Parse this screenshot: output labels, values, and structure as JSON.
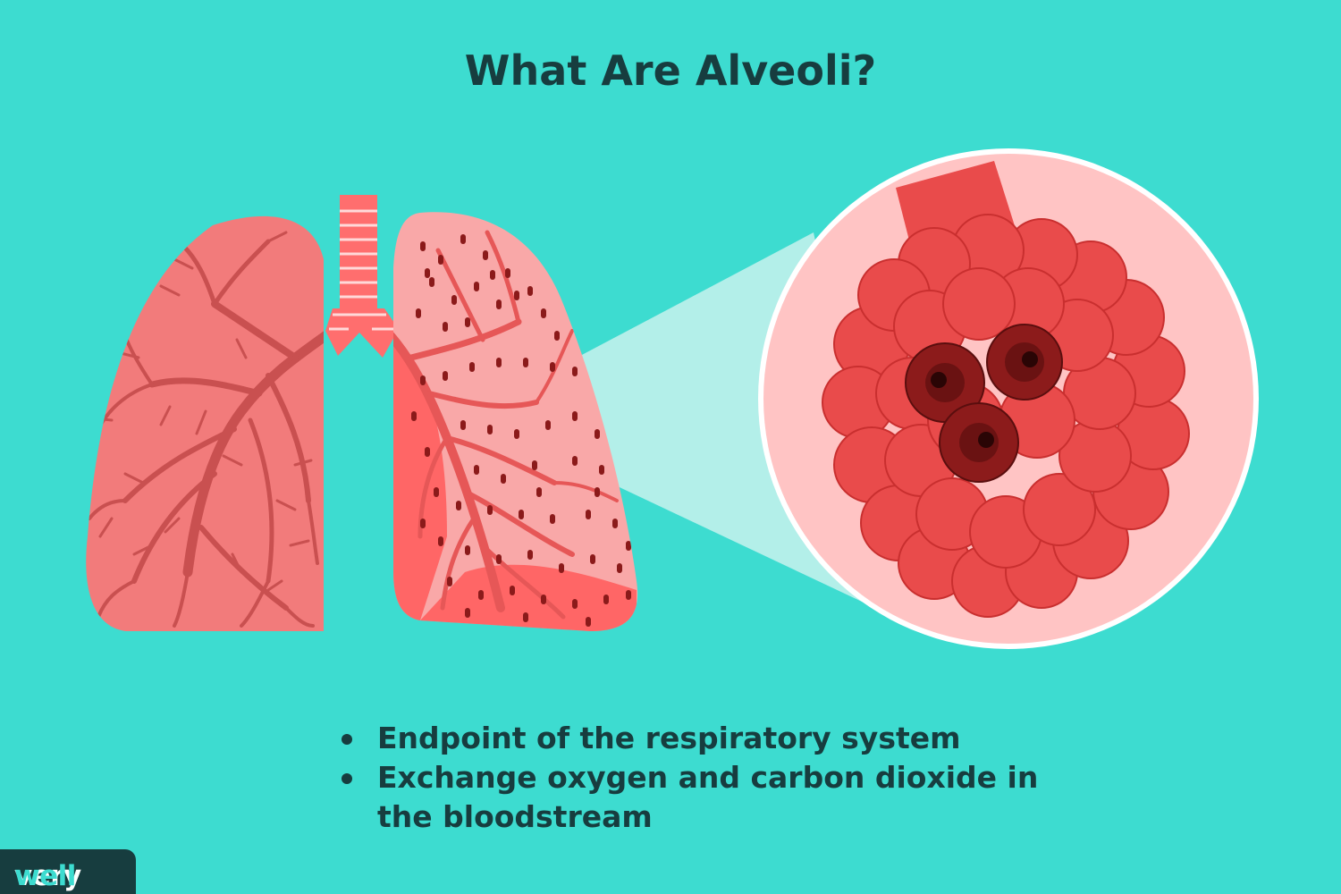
{
  "title": "What Are Alveoli?",
  "bullets": [
    {
      "text": "Endpoint of the respiratory system"
    },
    {
      "text": "Exchange oxygen and carbon dioxide in the bloodstream"
    }
  ],
  "logo": {
    "part1": "very",
    "part2": "well"
  },
  "colors": {
    "background": "#3ddcd0",
    "text_dark": "#173d3f",
    "lung_left": "#f27b7b",
    "lung_right": "#f9a8a8",
    "lung_right_inner": "#ff6666",
    "bronchi_left": "#c95050",
    "bronchi_right": "#e65757",
    "alveoli_dots": "#8b1a1a",
    "trachea": "#ff6e6e",
    "magnifier_fill": "#ffc4c4",
    "alveolus": "#e94b4b",
    "alveolus_dark": "#8c1b1b",
    "beam": "#b9efea"
  },
  "icons": [
    "lungs-illustration",
    "trachea",
    "bronchial-tree",
    "alveoli-cluster",
    "magnifier-circle",
    "zoom-beam"
  ]
}
